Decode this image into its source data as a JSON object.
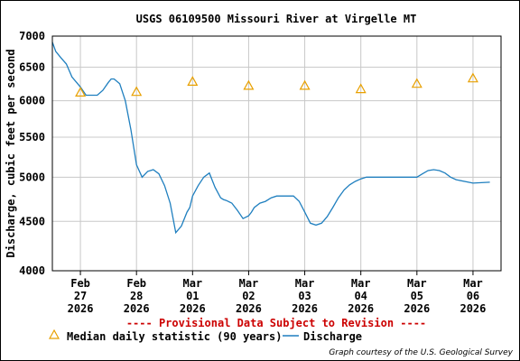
{
  "chart_data": {
    "type": "line",
    "title": "USGS 06109500 Missouri River at Virgelle MT",
    "xlabel": "",
    "ylabel": "Discharge, cubic feet per second",
    "y_scale": "log",
    "ylim": [
      4000,
      7000
    ],
    "xlim": [
      0,
      8
    ],
    "grid": true,
    "y_ticks": [
      {
        "value": 4000,
        "label": "4000"
      },
      {
        "value": 4500,
        "label": "4500"
      },
      {
        "value": 5000,
        "label": "5000"
      },
      {
        "value": 5500,
        "label": "5500"
      },
      {
        "value": 6000,
        "label": "6000"
      },
      {
        "value": 6500,
        "label": "6500"
      },
      {
        "value": 7000,
        "label": "7000"
      }
    ],
    "x_ticks": [
      {
        "value": 0.5,
        "month": "Feb",
        "day": "27",
        "year": "2026"
      },
      {
        "value": 1.5,
        "month": "Feb",
        "day": "28",
        "year": "2026"
      },
      {
        "value": 2.5,
        "month": "Mar",
        "day": "01",
        "year": "2026"
      },
      {
        "value": 3.5,
        "month": "Mar",
        "day": "02",
        "year": "2026"
      },
      {
        "value": 4.5,
        "month": "Mar",
        "day": "03",
        "year": "2026"
      },
      {
        "value": 5.5,
        "month": "Mar",
        "day": "04",
        "year": "2026"
      },
      {
        "value": 6.5,
        "month": "Mar",
        "day": "05",
        "year": "2026"
      },
      {
        "value": 7.5,
        "month": "Mar",
        "day": "06",
        "year": "2026"
      }
    ],
    "series": [
      {
        "name": "Discharge",
        "color": "#1f7fbf",
        "x": [
          0.0,
          0.06,
          0.15,
          0.25,
          0.35,
          0.5,
          0.6,
          0.8,
          0.9,
          1.0,
          1.05,
          1.1,
          1.2,
          1.3,
          1.4,
          1.5,
          1.6,
          1.7,
          1.8,
          1.9,
          2.0,
          2.1,
          2.2,
          2.3,
          2.4,
          2.45,
          2.5,
          2.6,
          2.7,
          2.8,
          2.9,
          3.0,
          3.05,
          3.1,
          3.2,
          3.3,
          3.4,
          3.5,
          3.55,
          3.6,
          3.7,
          3.8,
          3.9,
          4.0,
          4.1,
          4.2,
          4.3,
          4.4,
          4.5,
          4.6,
          4.7,
          4.8,
          4.9,
          5.0,
          5.1,
          5.2,
          5.3,
          5.4,
          5.5,
          5.6,
          5.7,
          5.8,
          5.9,
          6.0,
          6.2,
          6.5,
          6.6,
          6.7,
          6.8,
          6.9,
          7.0,
          7.1,
          7.2,
          7.5,
          7.8
        ],
        "values": [
          6900,
          6750,
          6650,
          6550,
          6350,
          6200,
          6080,
          6080,
          6150,
          6270,
          6320,
          6320,
          6250,
          6000,
          5600,
          5150,
          5000,
          5070,
          5090,
          5040,
          4900,
          4700,
          4380,
          4450,
          4600,
          4650,
          4780,
          4900,
          5000,
          5050,
          4880,
          4760,
          4740,
          4730,
          4700,
          4620,
          4530,
          4560,
          4600,
          4650,
          4700,
          4720,
          4760,
          4780,
          4780,
          4780,
          4780,
          4720,
          4600,
          4480,
          4460,
          4480,
          4550,
          4650,
          4760,
          4850,
          4910,
          4950,
          4980,
          5000,
          5000,
          5000,
          5000,
          5000,
          5000,
          5000,
          5040,
          5080,
          5090,
          5080,
          5050,
          5000,
          4970,
          4930,
          4940
        ]
      },
      {
        "name": "Median daily statistic (90 years)",
        "color": "#e8a000",
        "x": [
          0.5,
          1.5,
          2.5,
          3.5,
          4.5,
          5.5,
          6.5,
          7.5
        ],
        "values": [
          6120,
          6130,
          6280,
          6220,
          6220,
          6170,
          6250,
          6330
        ]
      }
    ]
  },
  "provisional_note": "---- Provisional Data Subject to Revision ----",
  "legend": {
    "median_label": "Median daily statistic (90 years)",
    "discharge_label": "Discharge"
  },
  "credit": "Graph courtesy of the U.S. Geological Survey",
  "colors": {
    "grid": "#c8c8c8",
    "axis": "#000000",
    "provisional": "#cc0000",
    "discharge": "#1f7fbf",
    "median": "#e8a000"
  }
}
